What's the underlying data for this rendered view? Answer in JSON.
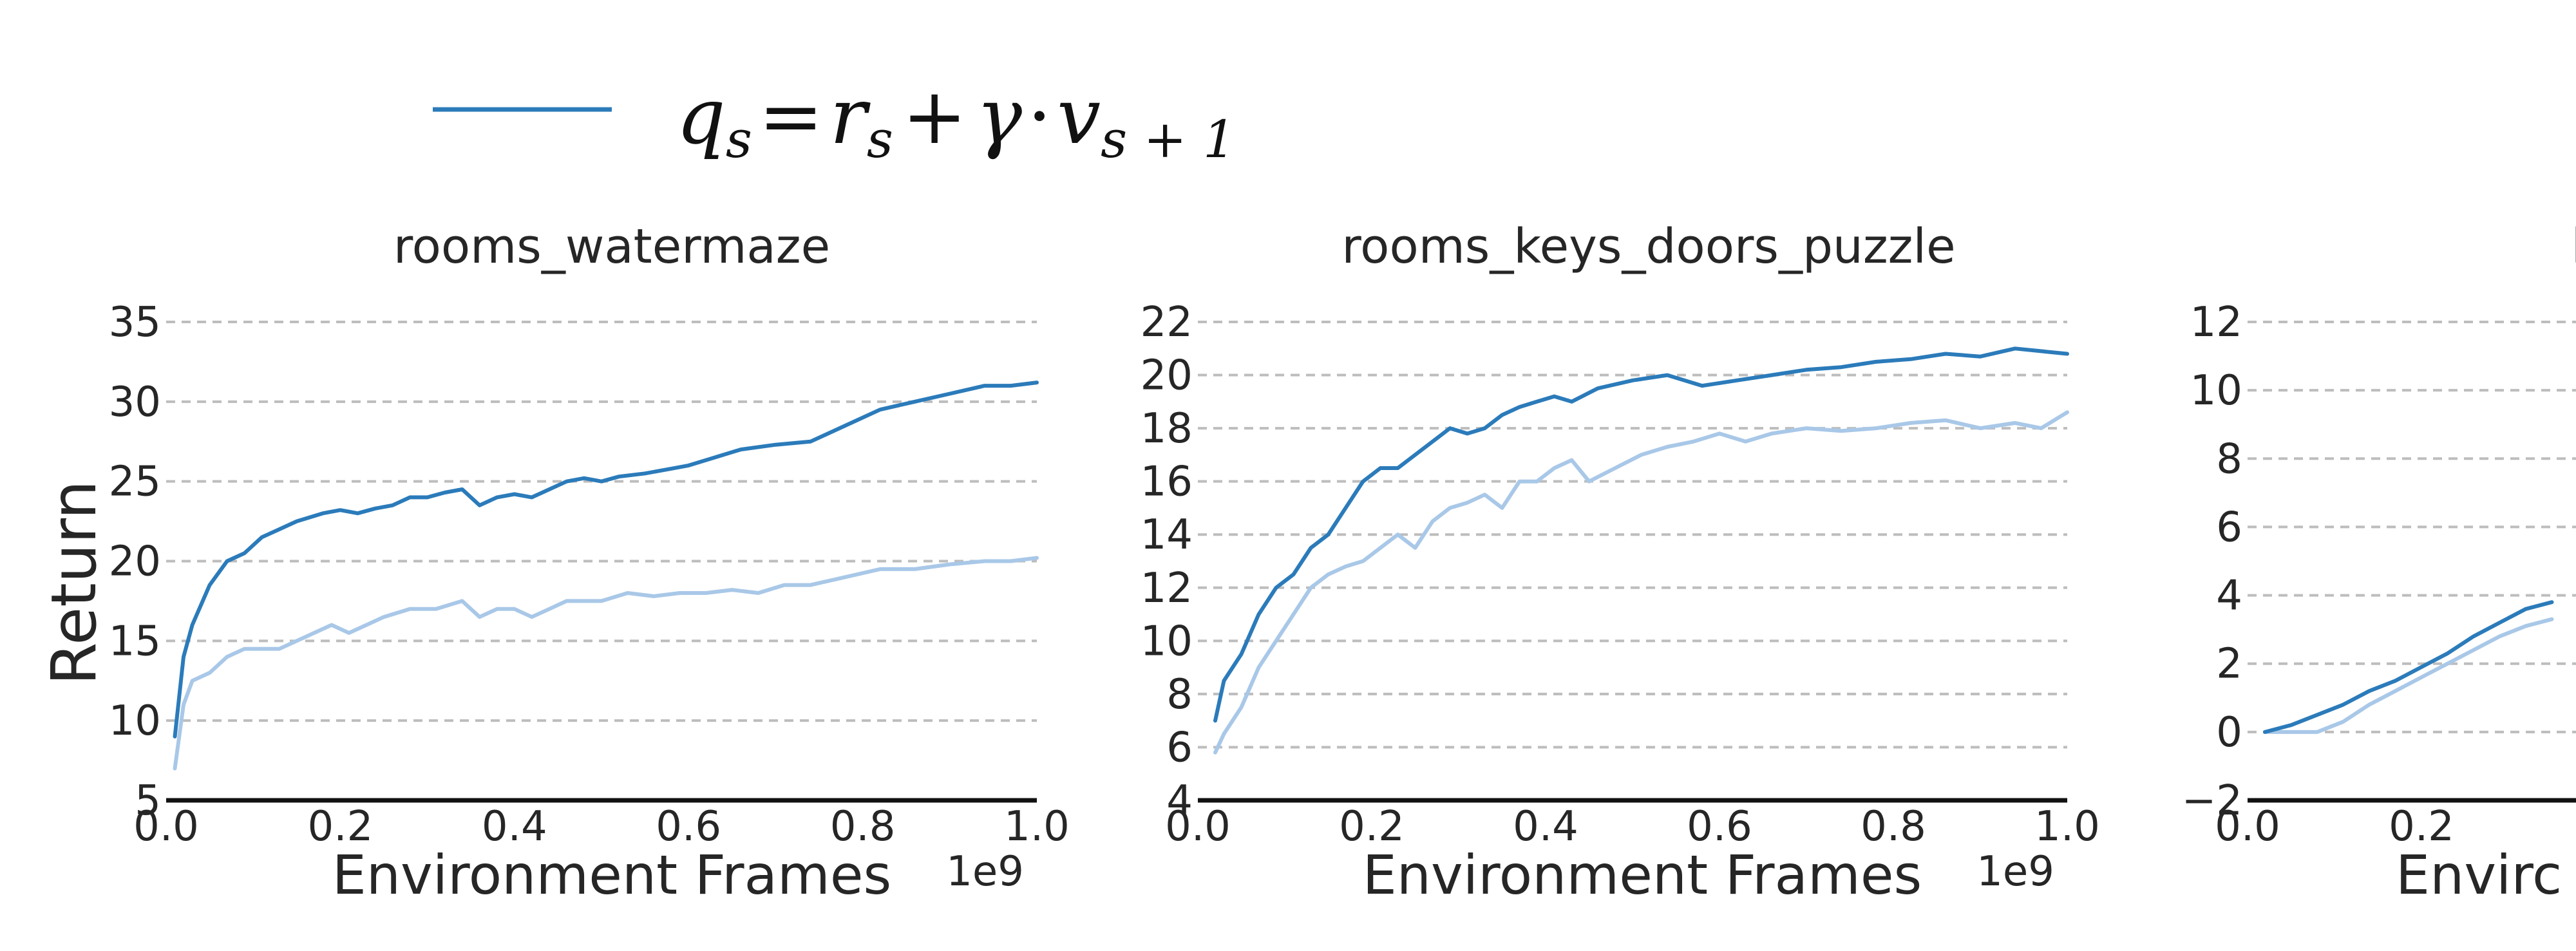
{
  "legend": {
    "line_color": "#2b7bba",
    "formula": {
      "q": "q",
      "q_sub": "s",
      "eq": "=",
      "r": "r",
      "r_sub": "s",
      "plus": "+",
      "gamma": "γ",
      "dot": "·",
      "v": "v",
      "v_sub": "s + 1"
    }
  },
  "figure": {
    "ylabel": "Return",
    "xlabel": "Environment Frames",
    "x_offset_label": "1e9"
  },
  "colors": {
    "dark": "#2b7bba",
    "light": "#a9c8e8"
  },
  "chart_data": [
    {
      "type": "line",
      "title": "rooms_watermaze",
      "xlim": [
        0.0,
        1.0
      ],
      "ylim": [
        5,
        35
      ],
      "xticks": [
        0.0,
        0.2,
        0.4,
        0.6,
        0.8,
        1.0
      ],
      "xtick_labels": [
        "0.0",
        "0.2",
        "0.4",
        "0.6",
        "0.8",
        "1.0"
      ],
      "yticks": [
        5,
        10,
        15,
        20,
        25,
        30,
        35
      ],
      "ytick_labels": [
        "5",
        "10",
        "15",
        "20",
        "25",
        "30",
        "35"
      ],
      "grid": true,
      "series": [
        {
          "color": "#2b7bba",
          "x": [
            0.01,
            0.02,
            0.03,
            0.05,
            0.07,
            0.09,
            0.11,
            0.13,
            0.15,
            0.18,
            0.2,
            0.22,
            0.24,
            0.26,
            0.28,
            0.3,
            0.32,
            0.34,
            0.36,
            0.38,
            0.4,
            0.42,
            0.44,
            0.46,
            0.48,
            0.5,
            0.52,
            0.55,
            0.58,
            0.6,
            0.63,
            0.66,
            0.7,
            0.74,
            0.78,
            0.82,
            0.86,
            0.9,
            0.94,
            0.97,
            1.0
          ],
          "y": [
            9.0,
            14.0,
            16.0,
            18.5,
            20.0,
            20.5,
            21.5,
            22.0,
            22.5,
            23.0,
            23.2,
            23.0,
            23.3,
            23.5,
            24.0,
            24.0,
            24.3,
            24.5,
            23.5,
            24.0,
            24.2,
            24.0,
            24.5,
            25.0,
            25.2,
            25.0,
            25.3,
            25.5,
            25.8,
            26.0,
            26.5,
            27.0,
            27.3,
            27.5,
            28.5,
            29.5,
            30.0,
            30.5,
            31.0,
            31.0,
            31.2
          ]
        },
        {
          "color": "#a9c8e8",
          "x": [
            0.01,
            0.02,
            0.03,
            0.05,
            0.07,
            0.09,
            0.11,
            0.13,
            0.15,
            0.17,
            0.19,
            0.21,
            0.23,
            0.25,
            0.28,
            0.31,
            0.34,
            0.36,
            0.38,
            0.4,
            0.42,
            0.44,
            0.46,
            0.48,
            0.5,
            0.53,
            0.56,
            0.59,
            0.62,
            0.65,
            0.68,
            0.71,
            0.74,
            0.78,
            0.82,
            0.86,
            0.9,
            0.94,
            0.97,
            1.0
          ],
          "y": [
            7.0,
            11.0,
            12.5,
            13.0,
            14.0,
            14.5,
            14.5,
            14.5,
            15.0,
            15.5,
            16.0,
            15.5,
            16.0,
            16.5,
            17.0,
            17.0,
            17.5,
            16.5,
            17.0,
            17.0,
            16.5,
            17.0,
            17.5,
            17.5,
            17.5,
            18.0,
            17.8,
            18.0,
            18.0,
            18.2,
            18.0,
            18.5,
            18.5,
            19.0,
            19.5,
            19.5,
            19.8,
            20.0,
            20.0,
            20.2
          ]
        }
      ]
    },
    {
      "type": "line",
      "title": "rooms_keys_doors_puzzle",
      "xlim": [
        0.0,
        1.0
      ],
      "ylim": [
        4,
        22
      ],
      "xticks": [
        0.0,
        0.2,
        0.4,
        0.6,
        0.8,
        1.0
      ],
      "xtick_labels": [
        "0.0",
        "0.2",
        "0.4",
        "0.6",
        "0.8",
        "1.0"
      ],
      "yticks": [
        4,
        6,
        8,
        10,
        12,
        14,
        16,
        18,
        20,
        22
      ],
      "ytick_labels": [
        "4",
        "6",
        "8",
        "10",
        "12",
        "14",
        "16",
        "18",
        "20",
        "22"
      ],
      "grid": true,
      "series": [
        {
          "color": "#2b7bba",
          "x": [
            0.02,
            0.03,
            0.05,
            0.07,
            0.09,
            0.11,
            0.13,
            0.15,
            0.17,
            0.19,
            0.21,
            0.23,
            0.25,
            0.27,
            0.29,
            0.31,
            0.33,
            0.35,
            0.37,
            0.39,
            0.41,
            0.43,
            0.46,
            0.5,
            0.54,
            0.58,
            0.62,
            0.66,
            0.7,
            0.74,
            0.78,
            0.82,
            0.86,
            0.9,
            0.94,
            0.97,
            1.0
          ],
          "y": [
            7.0,
            8.5,
            9.5,
            11.0,
            12.0,
            12.5,
            13.5,
            14.0,
            15.0,
            16.0,
            16.5,
            16.5,
            17.0,
            17.5,
            18.0,
            17.8,
            18.0,
            18.5,
            18.8,
            19.0,
            19.2,
            19.0,
            19.5,
            19.8,
            20.0,
            19.6,
            19.8,
            20.0,
            20.2,
            20.3,
            20.5,
            20.6,
            20.8,
            20.7,
            21.0,
            20.9,
            20.8
          ]
        },
        {
          "color": "#a9c8e8",
          "x": [
            0.02,
            0.03,
            0.05,
            0.07,
            0.09,
            0.11,
            0.13,
            0.15,
            0.17,
            0.19,
            0.21,
            0.23,
            0.25,
            0.27,
            0.29,
            0.31,
            0.33,
            0.35,
            0.37,
            0.39,
            0.41,
            0.43,
            0.45,
            0.48,
            0.51,
            0.54,
            0.57,
            0.6,
            0.63,
            0.66,
            0.7,
            0.74,
            0.78,
            0.82,
            0.86,
            0.9,
            0.94,
            0.97,
            1.0
          ],
          "y": [
            5.8,
            6.5,
            7.5,
            9.0,
            10.0,
            11.0,
            12.0,
            12.5,
            12.8,
            13.0,
            13.5,
            14.0,
            13.5,
            14.5,
            15.0,
            15.2,
            15.5,
            15.0,
            16.0,
            16.0,
            16.5,
            16.8,
            16.0,
            16.5,
            17.0,
            17.3,
            17.5,
            17.8,
            17.5,
            17.8,
            18.0,
            17.9,
            18.0,
            18.2,
            18.3,
            18.0,
            18.2,
            18.0,
            18.6
          ]
        }
      ]
    },
    {
      "type": "line",
      "title": "lasertag_th",
      "xlim": [
        0.0,
        1.0
      ],
      "ylim": [
        -2,
        12
      ],
      "xticks": [
        0.0,
        0.2
      ],
      "xtick_labels": [
        "0.0",
        "0.2"
      ],
      "yticks": [
        -2,
        0,
        2,
        4,
        6,
        8,
        10,
        12
      ],
      "ytick_labels": [
        "−2",
        "0",
        "2",
        "4",
        "6",
        "8",
        "10",
        "12"
      ],
      "xlabel_visible": "Envirc",
      "grid": true,
      "series": [
        {
          "color": "#2b7bba",
          "x": [
            0.02,
            0.05,
            0.08,
            0.11,
            0.14,
            0.17,
            0.2,
            0.23,
            0.26,
            0.29,
            0.32,
            0.35
          ],
          "y": [
            0.0,
            0.2,
            0.5,
            0.8,
            1.2,
            1.5,
            1.9,
            2.3,
            2.8,
            3.2,
            3.6,
            3.8
          ]
        },
        {
          "color": "#a9c8e8",
          "x": [
            0.02,
            0.05,
            0.08,
            0.11,
            0.14,
            0.17,
            0.2,
            0.23,
            0.26,
            0.29,
            0.32,
            0.35
          ],
          "y": [
            0.0,
            0.0,
            0.0,
            0.3,
            0.8,
            1.2,
            1.6,
            2.0,
            2.4,
            2.8,
            3.1,
            3.3
          ]
        }
      ]
    }
  ]
}
